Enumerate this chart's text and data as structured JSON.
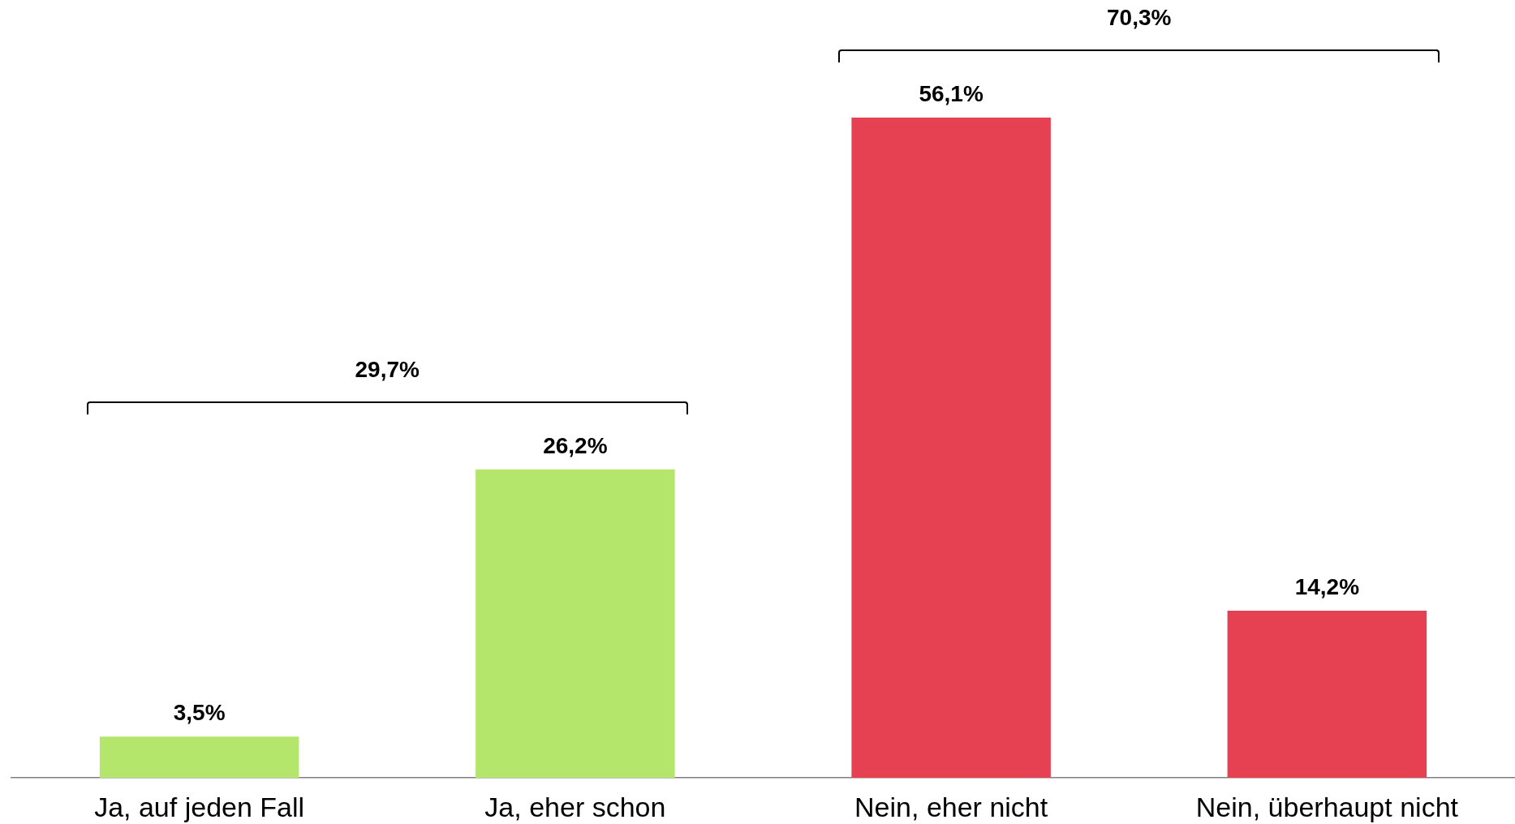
{
  "chart_data": {
    "type": "bar",
    "categories": [
      "Ja, auf jeden Fall",
      "Ja, eher schon",
      "Nein, eher nicht",
      "Nein, überhaupt nicht"
    ],
    "values": [
      3.5,
      26.2,
      56.1,
      14.2
    ],
    "colors": [
      "#b3e66b",
      "#b3e66b",
      "#e54152",
      "#e54152"
    ],
    "value_labels": [
      "3,5%",
      "26,2%",
      "56,1%",
      "14,2%"
    ],
    "annotations": [
      "29,7%",
      "70,3%"
    ],
    "tick_labels": "x"
  }
}
